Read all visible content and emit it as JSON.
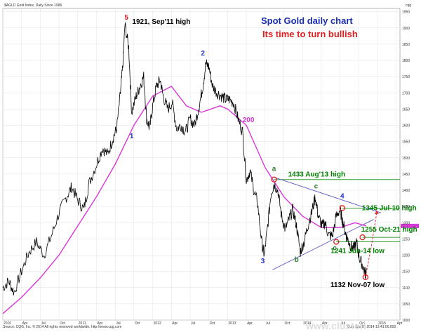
{
  "header": {
    "ticker_text": "$AGLD Gold Index, Daily Since 1986",
    "logo_text": "cqg"
  },
  "footer": {
    "source_text": "Source: CQG, Inc. © 2014 All rights reserved worldwide. http://www.cqg.com",
    "timestamp_text": "Sun Nov 09 2014 13:41:00.000"
  },
  "watermark": "www.clusteri",
  "chart_data": {
    "type": "line",
    "title": "Spot Gold daily chart",
    "subtitle": "Its time to turn bullish",
    "xlabel": "",
    "ylabel": "",
    "xlim": [
      2010.0,
      2015.3
    ],
    "ylim": [
      1000,
      1960
    ],
    "y_ticks": [
      1000,
      1050,
      1100,
      1150,
      1200,
      1250,
      1300,
      1350,
      1400,
      1450,
      1500,
      1550,
      1600,
      1650,
      1700,
      1750,
      1800,
      1850,
      1900,
      1950
    ],
    "x_ticks": [
      {
        "x": 2010.0,
        "label": "2010"
      },
      {
        "x": 2010.25,
        "label": "Apr"
      },
      {
        "x": 2010.5,
        "label": "Jul"
      },
      {
        "x": 2010.75,
        "label": "Oct"
      },
      {
        "x": 2011.0,
        "label": "2011"
      },
      {
        "x": 2011.25,
        "label": "Apr"
      },
      {
        "x": 2011.5,
        "label": "Jul"
      },
      {
        "x": 2011.75,
        "label": "Oct"
      },
      {
        "x": 2012.0,
        "label": "2012"
      },
      {
        "x": 2012.25,
        "label": "Apr"
      },
      {
        "x": 2012.5,
        "label": "Jul"
      },
      {
        "x": 2012.75,
        "label": "Oct"
      },
      {
        "x": 2013.0,
        "label": "2013"
      },
      {
        "x": 2013.25,
        "label": "Apr"
      },
      {
        "x": 2013.5,
        "label": "Jul"
      },
      {
        "x": 2013.75,
        "label": "Oct"
      },
      {
        "x": 2014.0,
        "label": "2014"
      },
      {
        "x": 2014.25,
        "label": "Apr"
      },
      {
        "x": 2014.5,
        "label": "Jul"
      },
      {
        "x": 2014.75,
        "label": "Oct"
      },
      {
        "x": 2015.0,
        "label": "2015"
      },
      {
        "x": 2015.25,
        "label": "Apr"
      }
    ],
    "grid": true,
    "price_series": {
      "color": "#000000",
      "x": [
        2010.0,
        2010.08,
        2010.15,
        2010.25,
        2010.35,
        2010.45,
        2010.55,
        2010.65,
        2010.75,
        2010.85,
        2010.92,
        2011.0,
        2011.08,
        2011.15,
        2011.25,
        2011.33,
        2011.4,
        2011.47,
        2011.52,
        2011.57,
        2011.6,
        2011.63,
        2011.68,
        2011.72,
        2011.78,
        2011.83,
        2011.88,
        2011.92,
        2011.96,
        2012.0,
        2012.05,
        2012.1,
        2012.14,
        2012.2,
        2012.26,
        2012.32,
        2012.38,
        2012.44,
        2012.5,
        2012.56,
        2012.62,
        2012.67,
        2012.71,
        2012.75,
        2012.8,
        2012.86,
        2012.92,
        2012.97,
        2013.02,
        2013.08,
        2013.14,
        2013.2,
        2013.25,
        2013.3,
        2013.35,
        2013.4,
        2013.46,
        2013.49,
        2013.53,
        2013.58,
        2013.62,
        2013.67,
        2013.72,
        2013.77,
        2013.82,
        2013.87,
        2013.92,
        2013.97,
        2014.02,
        2014.07,
        2014.12,
        2014.17,
        2014.21,
        2014.26,
        2014.3,
        2014.35,
        2014.4,
        2014.45,
        2014.5,
        2014.53,
        2014.57,
        2014.6,
        2014.64,
        2014.68,
        2014.72,
        2014.76,
        2014.8,
        2014.84,
        2014.85
      ],
      "y": [
        1100,
        1120,
        1085,
        1150,
        1210,
        1240,
        1200,
        1260,
        1330,
        1380,
        1410,
        1370,
        1340,
        1420,
        1480,
        1530,
        1510,
        1560,
        1590,
        1700,
        1780,
        1910,
        1840,
        1640,
        1690,
        1720,
        1750,
        1620,
        1590,
        1660,
        1720,
        1740,
        1690,
        1650,
        1670,
        1590,
        1600,
        1580,
        1620,
        1600,
        1660,
        1720,
        1790,
        1780,
        1720,
        1700,
        1690,
        1680,
        1680,
        1670,
        1620,
        1580,
        1430,
        1460,
        1400,
        1360,
        1230,
        1200,
        1280,
        1390,
        1420,
        1400,
        1320,
        1280,
        1310,
        1340,
        1290,
        1210,
        1240,
        1290,
        1330,
        1380,
        1320,
        1290,
        1300,
        1260,
        1260,
        1320,
        1340,
        1310,
        1270,
        1250,
        1230,
        1220,
        1240,
        1190,
        1170,
        1140,
        1160
      ]
    },
    "moving_average": {
      "name": "200",
      "color": "#d836d8",
      "x": [
        2010.0,
        2010.25,
        2010.5,
        2010.75,
        2011.0,
        2011.25,
        2011.5,
        2011.75,
        2012.0,
        2012.25,
        2012.45,
        2012.65,
        2012.9,
        2013.0,
        2013.25,
        2013.5,
        2013.75,
        2014.0,
        2014.25,
        2014.5,
        2014.7,
        2014.85
      ],
      "y": [
        1020,
        1070,
        1130,
        1200,
        1290,
        1380,
        1480,
        1600,
        1690,
        1720,
        1660,
        1640,
        1660,
        1650,
        1600,
        1470,
        1380,
        1320,
        1285,
        1285,
        1300,
        1290
      ]
    },
    "annotations": [
      {
        "label": "1921, Sep'11 high",
        "x": 2011.68,
        "y": 1921,
        "color": "#000000"
      },
      {
        "label": "1433 Aug'13 high",
        "x": 2013.62,
        "y": 1433,
        "color": "#008000"
      },
      {
        "label": "1345 Jul-10 high",
        "x": 2014.53,
        "y": 1345,
        "color": "#008000"
      },
      {
        "label": "1255 Oct-21 high",
        "x": 2014.8,
        "y": 1255,
        "color": "#008000"
      },
      {
        "label": "1241 Jun-14 low",
        "x": 2014.45,
        "y": 1241,
        "color": "#008000"
      },
      {
        "label": "1132 Nov-07 low",
        "x": 2014.84,
        "y": 1132,
        "color": "#000000"
      }
    ],
    "horizontal_levels": [
      {
        "y": 1433,
        "x_start": 2013.62,
        "color": "#2e9e2e"
      },
      {
        "y": 1345,
        "x_start": 2014.53,
        "color": "#2e9e2e"
      },
      {
        "y": 1255,
        "x_start": 2014.8,
        "color": "#2e9e2e"
      },
      {
        "y": 1241,
        "x_start": 2014.45,
        "color": "#2e9e2e"
      }
    ],
    "trendlines": [
      {
        "x": [
          2013.62,
          2015.05
        ],
        "y": [
          1440,
          1330
        ],
        "color": "#6666cc"
      },
      {
        "x": [
          2013.6,
          2014.95
        ],
        "y": [
          1155,
          1310
        ],
        "color": "#6666cc"
      }
    ],
    "circles": [
      {
        "x": 2013.62,
        "y": 1433
      },
      {
        "x": 2014.53,
        "y": 1345
      },
      {
        "x": 2014.45,
        "y": 1241
      },
      {
        "x": 2014.8,
        "y": 1255
      },
      {
        "x": 2014.84,
        "y": 1132
      }
    ],
    "wave_labels": [
      {
        "label": "1",
        "x": 2011.72,
        "y": 1560,
        "color": "#1f2fd0"
      },
      {
        "label": "2",
        "x": 2012.67,
        "y": 1815,
        "color": "#1f2fd0"
      },
      {
        "label": "3",
        "x": 2013.47,
        "y": 1175,
        "color": "#1f2fd0"
      },
      {
        "label": "4",
        "x": 2014.53,
        "y": 1375,
        "color": "#1f2fd0"
      },
      {
        "label": "5",
        "x": 2011.65,
        "y": 1925,
        "color": "#d02020"
      },
      {
        "label": "a",
        "x": 2013.62,
        "y": 1460,
        "color": "#2e7d2e"
      },
      {
        "label": "b",
        "x": 2013.92,
        "y": 1180,
        "color": "#2e7d2e"
      },
      {
        "label": "c",
        "x": 2014.18,
        "y": 1405,
        "color": "#2e7d2e"
      },
      {
        "label": "c",
        "x": 2014.43,
        "y": 1215,
        "color": "#2e7d2e"
      }
    ],
    "projection": {
      "x": [
        2014.84,
        2014.92,
        2014.99
      ],
      "y": [
        1132,
        1230,
        1330
      ],
      "color": "#e03030"
    },
    "current_price_marker": {
      "y": 1290,
      "color": "#d836d8"
    }
  }
}
